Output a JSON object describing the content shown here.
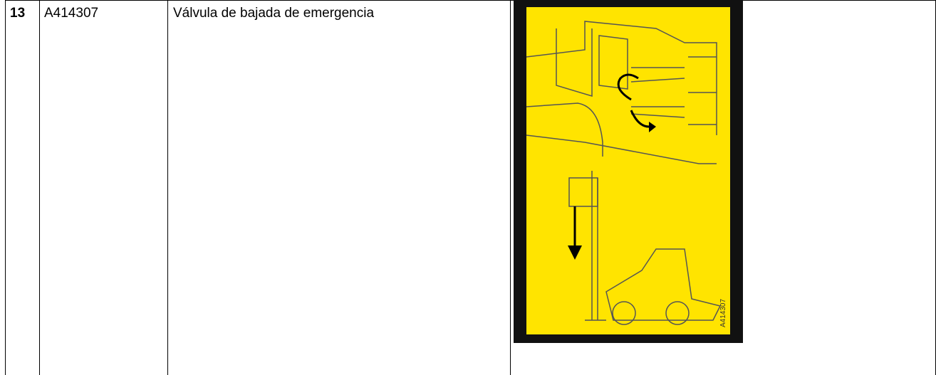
{
  "table": {
    "rows": [
      [
        "13",
        "A414307",
        "Válvula de bajada de emergencia"
      ]
    ]
  },
  "decal": {
    "label": "A414307"
  }
}
